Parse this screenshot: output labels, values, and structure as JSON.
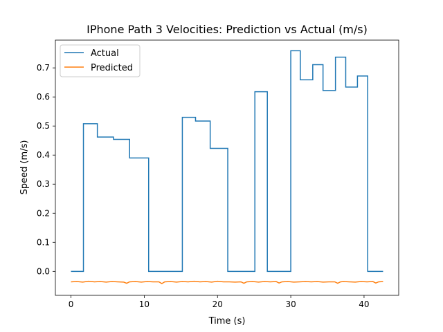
{
  "chart_data": {
    "type": "line",
    "title": "IPhone Path 3 Velocities: Prediction vs Actual (m/s)",
    "xlabel": "Time (s)",
    "ylabel": "Speed (m/s)",
    "xlim": [
      -2.13,
      44.73
    ],
    "ylim": [
      -0.0825,
      0.7955
    ],
    "xticks": [
      0,
      10,
      20,
      30,
      40
    ],
    "yticks": [
      0.0,
      0.1,
      0.2,
      0.3,
      0.4,
      0.5,
      0.6,
      0.7
    ],
    "ytick_labels": [
      "0.0",
      "0.1",
      "0.2",
      "0.3",
      "0.4",
      "0.5",
      "0.6",
      "0.7"
    ],
    "grid": false,
    "legend_placement": "upper-left",
    "series": [
      {
        "name": "Actual",
        "color": "#1f77b4",
        "style": "step",
        "x": [
          0,
          1.7,
          1.7,
          3.6,
          3.6,
          5.8,
          5.8,
          8.0,
          8.0,
          10.6,
          10.6,
          15.2,
          15.2,
          17.0,
          17.0,
          19.0,
          19.0,
          21.4,
          21.4,
          25.1,
          25.1,
          26.8,
          26.8,
          30.0,
          30.0,
          31.3,
          31.3,
          33.0,
          33.0,
          34.4,
          34.4,
          36.1,
          36.1,
          37.5,
          37.5,
          39.1,
          39.1,
          40.5,
          40.5,
          42.6
        ],
        "y": [
          0,
          0,
          0.508,
          0.508,
          0.462,
          0.462,
          0.454,
          0.454,
          0.39,
          0.39,
          0,
          0,
          0.53,
          0.53,
          0.517,
          0.517,
          0.423,
          0.423,
          0,
          0,
          0.618,
          0.618,
          0,
          0,
          0.759,
          0.759,
          0.659,
          0.659,
          0.711,
          0.711,
          0.622,
          0.622,
          0.737,
          0.737,
          0.634,
          0.634,
          0.672,
          0.672,
          0,
          0
        ]
      },
      {
        "name": "Predicted",
        "color": "#ff7f0e",
        "style": "line",
        "x": [
          0,
          0.8,
          1.6,
          2.4,
          3.2,
          4.0,
          4.8,
          5.6,
          6.4,
          7.2,
          7.6,
          8.0,
          8.8,
          9.6,
          10.4,
          11.2,
          12.0,
          12.4,
          12.8,
          13.6,
          14.4,
          15.2,
          16.0,
          16.8,
          17.6,
          18.4,
          19.2,
          20.0,
          20.8,
          21.6,
          22.4,
          23.2,
          23.6,
          24.0,
          24.8,
          25.6,
          26.4,
          27.2,
          28.0,
          28.4,
          28.8,
          29.6,
          30.4,
          31.2,
          32.0,
          32.8,
          33.6,
          34.4,
          35.2,
          36.0,
          36.4,
          36.8,
          37.2,
          38.0,
          38.8,
          39.6,
          40.4,
          41.2,
          41.6,
          42.0,
          42.6
        ],
        "y": [
          -0.036,
          -0.035,
          -0.037,
          -0.034,
          -0.036,
          -0.035,
          -0.037,
          -0.035,
          -0.036,
          -0.037,
          -0.041,
          -0.036,
          -0.035,
          -0.037,
          -0.035,
          -0.036,
          -0.036,
          -0.042,
          -0.036,
          -0.035,
          -0.037,
          -0.035,
          -0.036,
          -0.034,
          -0.036,
          -0.035,
          -0.037,
          -0.034,
          -0.036,
          -0.036,
          -0.037,
          -0.036,
          -0.041,
          -0.036,
          -0.035,
          -0.037,
          -0.035,
          -0.036,
          -0.035,
          -0.04,
          -0.036,
          -0.035,
          -0.037,
          -0.036,
          -0.035,
          -0.036,
          -0.035,
          -0.037,
          -0.036,
          -0.036,
          -0.041,
          -0.036,
          -0.035,
          -0.036,
          -0.037,
          -0.035,
          -0.036,
          -0.035,
          -0.04,
          -0.036,
          -0.035
        ]
      }
    ]
  }
}
